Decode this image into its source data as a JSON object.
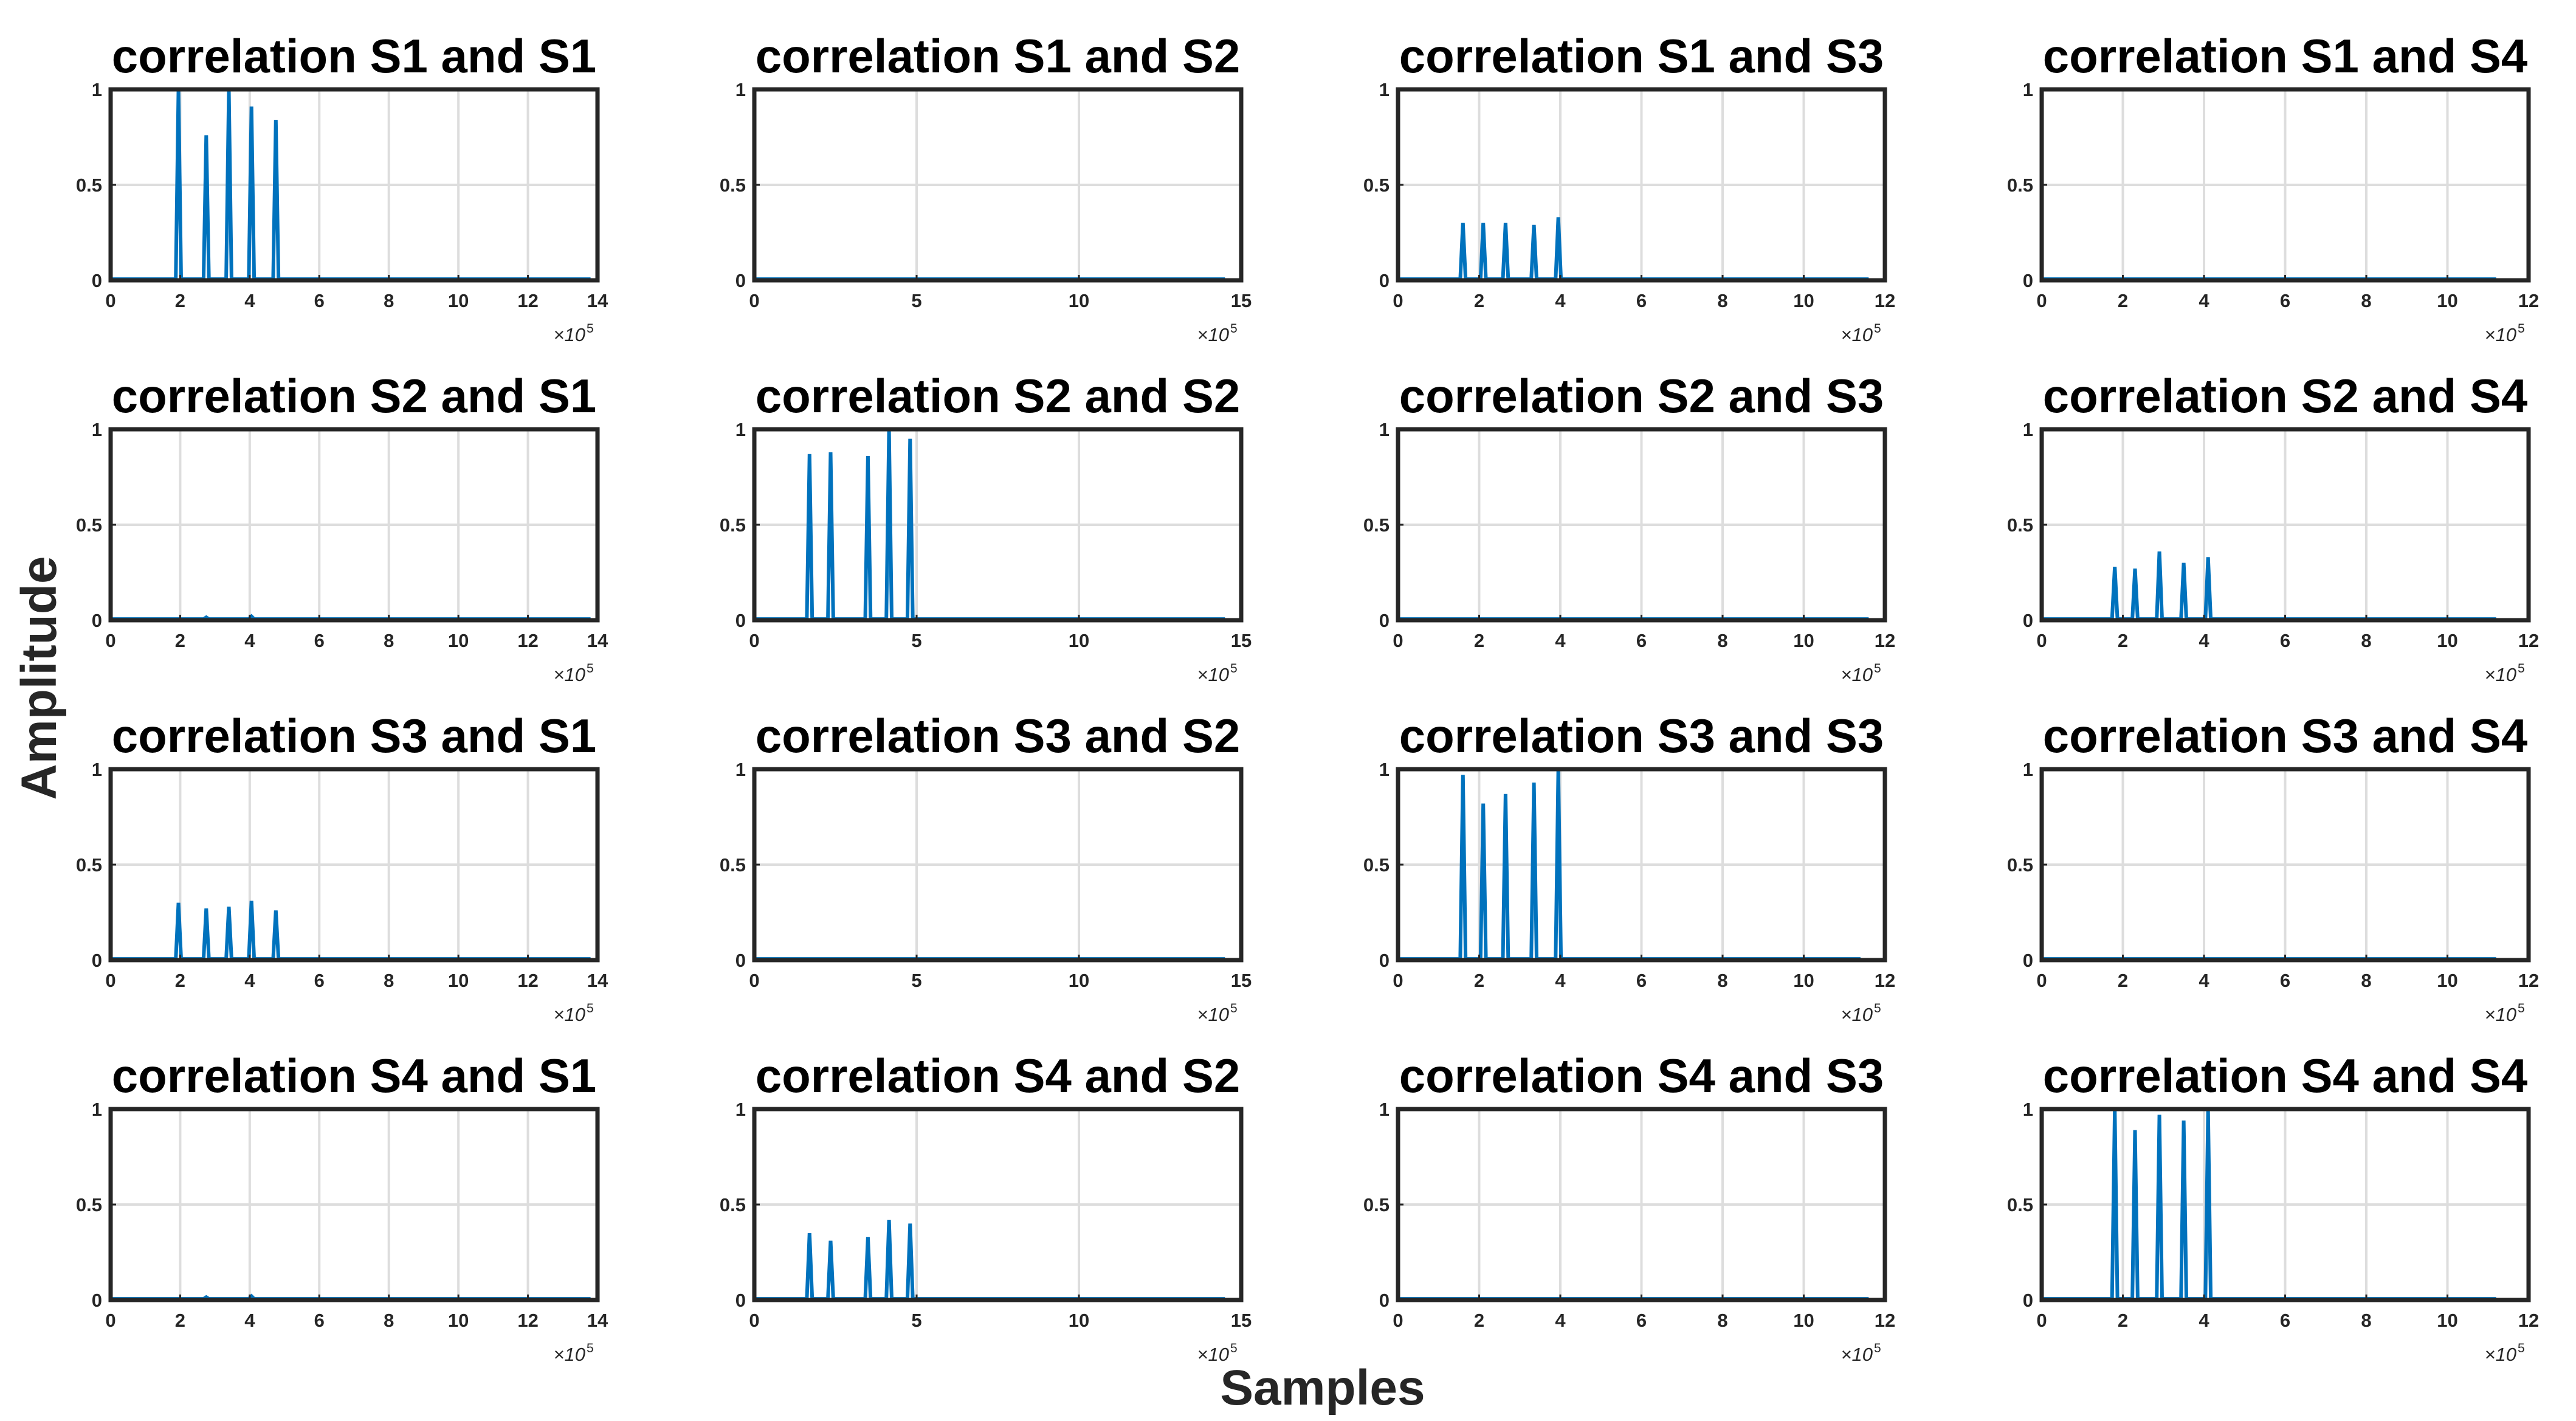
{
  "figure": {
    "ylabel": "Amplitude",
    "xlabel": "Samples",
    "colors": {
      "series": "#0072bd",
      "axes": "#262626",
      "grid": "#dddddd",
      "background": "#ffffff"
    }
  },
  "chart_data": [
    {
      "type": "line",
      "title": "correlation S1 and S1",
      "xlim": [
        0,
        14
      ],
      "ylim": [
        0,
        1
      ],
      "xticks": [
        "0",
        "2",
        "4",
        "6",
        "8",
        "10",
        "12",
        "14"
      ],
      "yticks": [
        "0",
        "0.5",
        "1"
      ],
      "x_multiplier": "×10",
      "x_multiplier_exp": "5",
      "data_end": 13.8,
      "peaks": [
        {
          "x": 1.95,
          "y": 1.0
        },
        {
          "x": 2.75,
          "y": 0.76
        },
        {
          "x": 3.4,
          "y": 1.0
        },
        {
          "x": 4.05,
          "y": 0.91
        },
        {
          "x": 4.75,
          "y": 0.84
        }
      ],
      "bumps": [],
      "grid": true
    },
    {
      "type": "line",
      "title": "correlation S1 and S2",
      "xlim": [
        0,
        15
      ],
      "ylim": [
        0,
        1
      ],
      "xticks": [
        "0",
        "5",
        "10",
        "15"
      ],
      "yticks": [
        "0",
        "0.5",
        "1"
      ],
      "x_multiplier": "×10",
      "x_multiplier_exp": "5",
      "data_end": 14.5,
      "peaks": [],
      "bumps": [],
      "grid": true
    },
    {
      "type": "line",
      "title": "correlation S1 and S3",
      "xlim": [
        0,
        12
      ],
      "ylim": [
        0,
        1
      ],
      "xticks": [
        "0",
        "2",
        "4",
        "6",
        "8",
        "10",
        "12"
      ],
      "yticks": [
        "0",
        "0.5",
        "1"
      ],
      "x_multiplier": "×10",
      "x_multiplier_exp": "5",
      "data_end": 11.6,
      "peaks": [
        {
          "x": 1.6,
          "y": 0.3
        },
        {
          "x": 2.1,
          "y": 0.3
        },
        {
          "x": 2.65,
          "y": 0.3
        },
        {
          "x": 3.35,
          "y": 0.29
        },
        {
          "x": 3.95,
          "y": 0.33
        }
      ],
      "bumps": [],
      "grid": true
    },
    {
      "type": "line",
      "title": "correlation S1 and S4",
      "xlim": [
        0,
        12
      ],
      "ylim": [
        0,
        1
      ],
      "xticks": [
        "0",
        "2",
        "4",
        "6",
        "8",
        "10",
        "12"
      ],
      "yticks": [
        "0",
        "0.5",
        "1"
      ],
      "x_multiplier": "×10",
      "x_multiplier_exp": "5",
      "data_end": 11.2,
      "peaks": [],
      "bumps": [],
      "grid": true
    },
    {
      "type": "line",
      "title": "correlation S2 and S1",
      "xlim": [
        0,
        14
      ],
      "ylim": [
        0,
        1
      ],
      "xticks": [
        "0",
        "2",
        "4",
        "6",
        "8",
        "10",
        "12",
        "14"
      ],
      "yticks": [
        "0",
        "0.5",
        "1"
      ],
      "x_multiplier": "×10",
      "x_multiplier_exp": "5",
      "data_end": 13.8,
      "peaks": [],
      "bumps": [
        {
          "x": 2.75,
          "y": 0.015
        },
        {
          "x": 4.05,
          "y": 0.02
        }
      ],
      "grid": true
    },
    {
      "type": "line",
      "title": "correlation S2 and S2",
      "xlim": [
        0,
        15
      ],
      "ylim": [
        0,
        1
      ],
      "xticks": [
        "0",
        "5",
        "10",
        "15"
      ],
      "yticks": [
        "0",
        "0.5",
        "1"
      ],
      "x_multiplier": "×10",
      "x_multiplier_exp": "5",
      "data_end": 14.5,
      "peaks": [
        {
          "x": 1.7,
          "y": 0.87
        },
        {
          "x": 2.35,
          "y": 0.88
        },
        {
          "x": 3.5,
          "y": 0.86
        },
        {
          "x": 4.15,
          "y": 1.0
        },
        {
          "x": 4.8,
          "y": 0.95
        }
      ],
      "bumps": [],
      "grid": true
    },
    {
      "type": "line",
      "title": "correlation S2 and S3",
      "xlim": [
        0,
        12
      ],
      "ylim": [
        0,
        1
      ],
      "xticks": [
        "0",
        "2",
        "4",
        "6",
        "8",
        "10",
        "12"
      ],
      "yticks": [
        "0",
        "0.5",
        "1"
      ],
      "x_multiplier": "×10",
      "x_multiplier_exp": "5",
      "data_end": 11.6,
      "peaks": [],
      "bumps": [],
      "grid": true
    },
    {
      "type": "line",
      "title": "correlation S2 and S4",
      "xlim": [
        0,
        12
      ],
      "ylim": [
        0,
        1
      ],
      "xticks": [
        "0",
        "2",
        "4",
        "6",
        "8",
        "10",
        "12"
      ],
      "yticks": [
        "0",
        "0.5",
        "1"
      ],
      "x_multiplier": "×10",
      "x_multiplier_exp": "5",
      "data_end": 11.2,
      "peaks": [
        {
          "x": 1.8,
          "y": 0.28
        },
        {
          "x": 2.3,
          "y": 0.27
        },
        {
          "x": 2.9,
          "y": 0.36
        },
        {
          "x": 3.5,
          "y": 0.3
        },
        {
          "x": 4.1,
          "y": 0.33
        }
      ],
      "bumps": [],
      "grid": true
    },
    {
      "type": "line",
      "title": "correlation S3 and S1",
      "xlim": [
        0,
        14
      ],
      "ylim": [
        0,
        1
      ],
      "xticks": [
        "0",
        "2",
        "4",
        "6",
        "8",
        "10",
        "12",
        "14"
      ],
      "yticks": [
        "0",
        "0.5",
        "1"
      ],
      "x_multiplier": "×10",
      "x_multiplier_exp": "5",
      "data_end": 13.8,
      "peaks": [
        {
          "x": 1.95,
          "y": 0.3
        },
        {
          "x": 2.75,
          "y": 0.27
        },
        {
          "x": 3.4,
          "y": 0.28
        },
        {
          "x": 4.05,
          "y": 0.31
        },
        {
          "x": 4.75,
          "y": 0.26
        }
      ],
      "bumps": [],
      "grid": true
    },
    {
      "type": "line",
      "title": "correlation S3 and S2",
      "xlim": [
        0,
        15
      ],
      "ylim": [
        0,
        1
      ],
      "xticks": [
        "0",
        "5",
        "10",
        "15"
      ],
      "yticks": [
        "0",
        "0.5",
        "1"
      ],
      "x_multiplier": "×10",
      "x_multiplier_exp": "5",
      "data_end": 14.5,
      "peaks": [],
      "bumps": [],
      "grid": true
    },
    {
      "type": "line",
      "title": "correlation S3 and S3",
      "xlim": [
        0,
        12
      ],
      "ylim": [
        0,
        1
      ],
      "xticks": [
        "0",
        "2",
        "4",
        "6",
        "8",
        "10",
        "12"
      ],
      "yticks": [
        "0",
        "0.5",
        "1"
      ],
      "x_multiplier": "×10",
      "x_multiplier_exp": "5",
      "data_end": 11.4,
      "peaks": [
        {
          "x": 1.6,
          "y": 0.97
        },
        {
          "x": 2.1,
          "y": 0.82
        },
        {
          "x": 2.65,
          "y": 0.87
        },
        {
          "x": 3.35,
          "y": 0.93
        },
        {
          "x": 3.95,
          "y": 1.0
        }
      ],
      "bumps": [],
      "grid": true
    },
    {
      "type": "line",
      "title": "correlation S3 and S4",
      "xlim": [
        0,
        12
      ],
      "ylim": [
        0,
        1
      ],
      "xticks": [
        "0",
        "2",
        "4",
        "6",
        "8",
        "10",
        "12"
      ],
      "yticks": [
        "0",
        "0.5",
        "1"
      ],
      "x_multiplier": "×10",
      "x_multiplier_exp": "5",
      "data_end": 11.2,
      "peaks": [],
      "bumps": [],
      "grid": true
    },
    {
      "type": "line",
      "title": "correlation S4 and S1",
      "xlim": [
        0,
        14
      ],
      "ylim": [
        0,
        1
      ],
      "xticks": [
        "0",
        "2",
        "4",
        "6",
        "8",
        "10",
        "12",
        "14"
      ],
      "yticks": [
        "0",
        "0.5",
        "1"
      ],
      "x_multiplier": "×10",
      "x_multiplier_exp": "5",
      "data_end": 13.8,
      "peaks": [],
      "bumps": [
        {
          "x": 2.75,
          "y": 0.015
        },
        {
          "x": 4.05,
          "y": 0.02
        }
      ],
      "grid": true
    },
    {
      "type": "line",
      "title": "correlation S4 and S2",
      "xlim": [
        0,
        15
      ],
      "ylim": [
        0,
        1
      ],
      "xticks": [
        "0",
        "5",
        "10",
        "15"
      ],
      "yticks": [
        "0",
        "0.5",
        "1"
      ],
      "x_multiplier": "×10",
      "x_multiplier_exp": "5",
      "data_end": 14.5,
      "peaks": [
        {
          "x": 1.7,
          "y": 0.35
        },
        {
          "x": 2.35,
          "y": 0.31
        },
        {
          "x": 3.5,
          "y": 0.33
        },
        {
          "x": 4.15,
          "y": 0.42
        },
        {
          "x": 4.8,
          "y": 0.4
        }
      ],
      "bumps": [],
      "grid": true
    },
    {
      "type": "line",
      "title": "correlation S4 and S3",
      "xlim": [
        0,
        12
      ],
      "ylim": [
        0,
        1
      ],
      "xticks": [
        "0",
        "2",
        "4",
        "6",
        "8",
        "10",
        "12"
      ],
      "yticks": [
        "0",
        "0.5",
        "1"
      ],
      "x_multiplier": "×10",
      "x_multiplier_exp": "5",
      "data_end": 11.6,
      "peaks": [],
      "bumps": [],
      "grid": true
    },
    {
      "type": "line",
      "title": "correlation S4 and S4",
      "xlim": [
        0,
        12
      ],
      "ylim": [
        0,
        1
      ],
      "xticks": [
        "0",
        "2",
        "4",
        "6",
        "8",
        "10",
        "12"
      ],
      "yticks": [
        "0",
        "0.5",
        "1"
      ],
      "x_multiplier": "×10",
      "x_multiplier_exp": "5",
      "data_end": 11.2,
      "peaks": [
        {
          "x": 1.8,
          "y": 1.0
        },
        {
          "x": 2.3,
          "y": 0.89
        },
        {
          "x": 2.9,
          "y": 0.97
        },
        {
          "x": 3.5,
          "y": 0.94
        },
        {
          "x": 4.1,
          "y": 1.0
        }
      ],
      "bumps": [],
      "grid": true
    }
  ]
}
